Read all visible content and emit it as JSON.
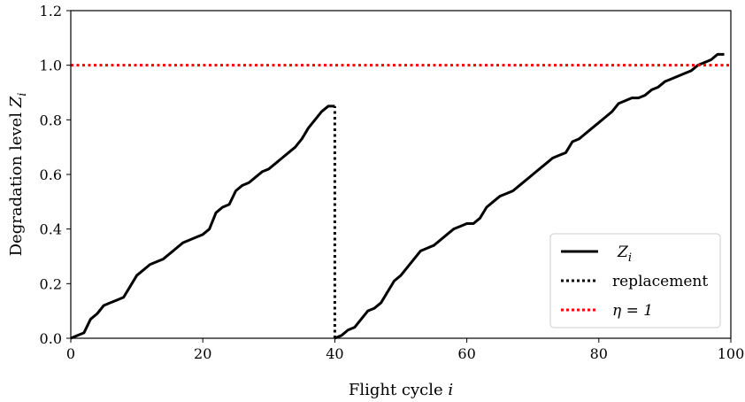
{
  "chart_data": {
    "type": "line",
    "xlabel": "Flight cycle",
    "xlabel_var": "i",
    "ylabel": "Degradation level",
    "ylabel_var": "Z",
    "ylabel_sub": "i",
    "xlim": [
      0,
      100
    ],
    "ylim": [
      0,
      1.2
    ],
    "xticks": [
      0,
      20,
      40,
      60,
      80,
      100
    ],
    "xtick_labels": [
      "0",
      "20",
      "40",
      "60",
      "80",
      "100"
    ],
    "yticks": [
      0.0,
      0.2,
      0.4,
      0.6,
      0.8,
      1.0,
      1.2
    ],
    "ytick_labels": [
      "0.0",
      "0.2",
      "0.4",
      "0.6",
      "0.8",
      "1.0",
      "1.2"
    ],
    "grid": false,
    "legend_position": "bottom-right",
    "series": [
      {
        "name": "Z_i",
        "legend_label": "Z",
        "legend_sub": "i",
        "color": "#000000",
        "style": "solid",
        "segments": [
          {
            "x": [
              0,
              1,
              2,
              3,
              4,
              5,
              6,
              7,
              8,
              9,
              10,
              11,
              12,
              13,
              14,
              15,
              16,
              17,
              18,
              19,
              20,
              21,
              22,
              23,
              24,
              25,
              26,
              27,
              28,
              29,
              30,
              31,
              32,
              33,
              34,
              35,
              36,
              37,
              38,
              39,
              40
            ],
            "y": [
              0.0,
              0.01,
              0.02,
              0.07,
              0.09,
              0.12,
              0.13,
              0.14,
              0.15,
              0.19,
              0.23,
              0.25,
              0.27,
              0.28,
              0.29,
              0.31,
              0.33,
              0.35,
              0.36,
              0.37,
              0.38,
              0.4,
              0.46,
              0.48,
              0.49,
              0.54,
              0.56,
              0.57,
              0.59,
              0.61,
              0.62,
              0.64,
              0.66,
              0.68,
              0.7,
              0.73,
              0.77,
              0.8,
              0.83,
              0.85,
              0.85
            ]
          },
          {
            "x": [
              40,
              41,
              42,
              43,
              44,
              45,
              46,
              47,
              48,
              49,
              50,
              51,
              52,
              53,
              54,
              55,
              56,
              57,
              58,
              59,
              60,
              61,
              62,
              63,
              64,
              65,
              66,
              67,
              68,
              69,
              70,
              71,
              72,
              73,
              74,
              75,
              76,
              77,
              78,
              79,
              80,
              81,
              82,
              83,
              84,
              85,
              86,
              87,
              88,
              89,
              90,
              91,
              92,
              93,
              94,
              95,
              96,
              97,
              98,
              99
            ],
            "y": [
              0.0,
              0.01,
              0.03,
              0.04,
              0.07,
              0.1,
              0.11,
              0.13,
              0.17,
              0.21,
              0.23,
              0.26,
              0.29,
              0.32,
              0.33,
              0.34,
              0.36,
              0.38,
              0.4,
              0.41,
              0.42,
              0.42,
              0.44,
              0.48,
              0.5,
              0.52,
              0.53,
              0.54,
              0.56,
              0.58,
              0.6,
              0.62,
              0.64,
              0.66,
              0.67,
              0.68,
              0.72,
              0.73,
              0.75,
              0.77,
              0.79,
              0.81,
              0.83,
              0.86,
              0.87,
              0.88,
              0.88,
              0.89,
              0.91,
              0.92,
              0.94,
              0.95,
              0.96,
              0.97,
              0.98,
              1.0,
              1.01,
              1.02,
              1.04,
              1.04
            ]
          }
        ]
      },
      {
        "name": "replacement",
        "legend_label": "replacement",
        "color": "#000000",
        "style": "dotted",
        "x": [
          40,
          40
        ],
        "y": [
          0.0,
          0.85
        ]
      },
      {
        "name": "eta = 1",
        "legend_label": "η = 1",
        "color": "#ff0000",
        "style": "dotted",
        "x": [
          0,
          100
        ],
        "y": [
          1.0,
          1.0
        ]
      }
    ]
  }
}
